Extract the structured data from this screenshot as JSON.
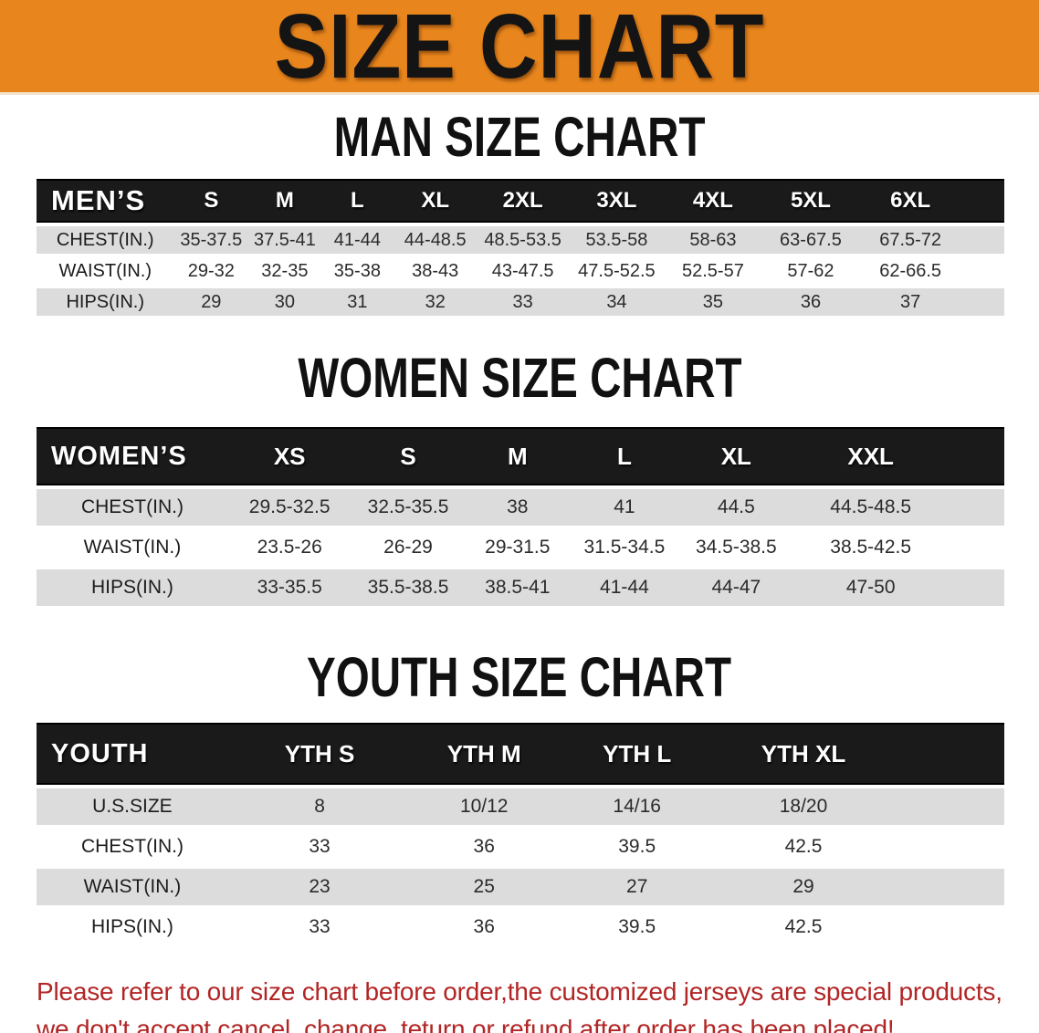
{
  "banner": {
    "title": "SIZE CHART"
  },
  "sections": [
    {
      "id": "men",
      "title": "MAN SIZE CHART",
      "corner_label": "MEN’S",
      "columns": [
        "S",
        "M",
        "L",
        "XL",
        "2XL",
        "3XL",
        "4XL",
        "5XL",
        "6XL"
      ],
      "rows": [
        {
          "label": "CHEST(IN.)",
          "values": [
            "35-37.5",
            "37.5-41",
            "41-44",
            "44-48.5",
            "48.5-53.5",
            "53.5-58",
            "58-63",
            "63-67.5",
            "67.5-72"
          ]
        },
        {
          "label": "WAIST(IN.)",
          "values": [
            "29-32",
            "32-35",
            "35-38",
            "38-43",
            "43-47.5",
            "47.5-52.5",
            "52.5-57",
            "57-62",
            "62-66.5"
          ]
        },
        {
          "label": "HIPS(IN.)",
          "values": [
            "29",
            "30",
            "31",
            "32",
            "33",
            "34",
            "35",
            "36",
            "37"
          ]
        }
      ]
    },
    {
      "id": "women",
      "title": "WOMEN SIZE CHART",
      "corner_label": "WOMEN’S",
      "columns": [
        "XS",
        "S",
        "M",
        "L",
        "XL",
        "XXL"
      ],
      "rows": [
        {
          "label": "CHEST(IN.)",
          "values": [
            "29.5-32.5",
            "32.5-35.5",
            "38",
            "41",
            "44.5",
            "44.5-48.5"
          ]
        },
        {
          "label": "WAIST(IN.)",
          "values": [
            "23.5-26",
            "26-29",
            "29-31.5",
            "31.5-34.5",
            "34.5-38.5",
            "38.5-42.5"
          ]
        },
        {
          "label": "HIPS(IN.)",
          "values": [
            "33-35.5",
            "35.5-38.5",
            "38.5-41",
            "41-44",
            "44-47",
            "47-50"
          ]
        }
      ]
    },
    {
      "id": "youth",
      "title": "YOUTH SIZE CHART",
      "corner_label": "YOUTH",
      "columns": [
        "YTH S",
        "YTH M",
        "YTH L",
        "YTH XL"
      ],
      "rows": [
        {
          "label": "U.S.SIZE",
          "values": [
            "8",
            "10/12",
            "14/16",
            "18/20"
          ]
        },
        {
          "label": "CHEST(IN.)",
          "values": [
            "33",
            "36",
            "39.5",
            "42.5"
          ]
        },
        {
          "label": "WAIST(IN.)",
          "values": [
            "23",
            "25",
            "27",
            "29"
          ]
        },
        {
          "label": "HIPS(IN.)",
          "values": [
            "33",
            "36",
            "39.5",
            "42.5"
          ]
        }
      ]
    }
  ],
  "footer": {
    "line1": "Please refer to our size chart before order,the customized jerseys are special products,",
    "line2": "we don't accept cancel, change, teturn or refund after order has been placed!"
  },
  "colors": {
    "banner_bg": "#E8861D",
    "header_bar": "#1A1A1A",
    "row_alt": "#DCDCDC",
    "note_red": "#B22525"
  }
}
